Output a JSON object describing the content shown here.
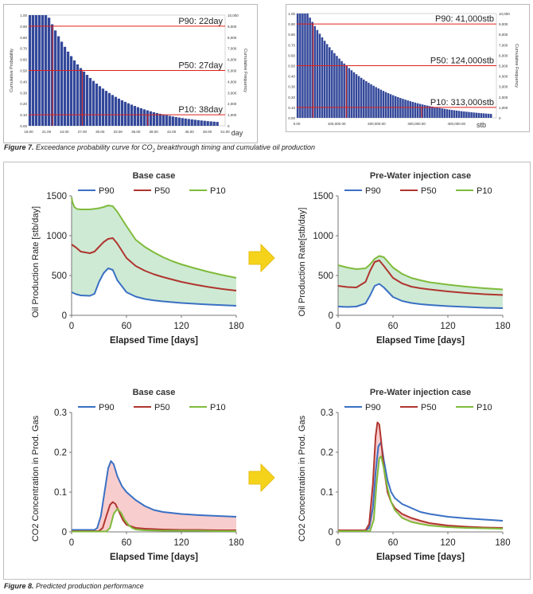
{
  "figure7": {
    "caption_prefix": "Figure 7.",
    "caption_text_a": " Exceedance probability curve for CO",
    "caption_sub": "2",
    "caption_text_b": " breakthrough timing and cumulative oil production"
  },
  "figure8": {
    "caption_prefix": "Figure 8.",
    "caption_text": " Predicted production performance"
  },
  "arrow_color": "#f5d31b",
  "chart_data": [
    {
      "id": "exc-breakthrough",
      "type": "bar",
      "xlabel": "day",
      "ylabel": "Cumulative Probability",
      "y2label": "Cumulative Frequency",
      "xlim": [
        18,
        51
      ],
      "ylim": [
        0,
        1
      ],
      "y2lim": [
        0,
        10000
      ],
      "xticks": [
        "18.00",
        "21.00",
        "24.00",
        "27.00",
        "30.00",
        "33.00",
        "36.00",
        "39.00",
        "42.00",
        "45.00",
        "48.00",
        "51.00"
      ],
      "yticks": [
        "0.00",
        "0.10",
        "0.20",
        "0.30",
        "0.40",
        "0.50",
        "0.60",
        "0.70",
        "0.80",
        "0.90",
        "1.00"
      ],
      "y2ticks": [
        "0",
        "1,000",
        "2,000",
        "3,000",
        "4,000",
        "5,000",
        "6,000",
        "7,000",
        "8,000",
        "9,000",
        "10,000"
      ],
      "bars": {
        "start": 18,
        "end": 50,
        "count": 60,
        "shape": "exceedance",
        "tau": 8.5,
        "shift": 3.0
      },
      "markers": [
        {
          "label": "P90: 22day",
          "prob": 0.9,
          "value": 22
        },
        {
          "label": "P50: 27day",
          "prob": 0.5,
          "value": 27
        },
        {
          "label": "P10: 38day",
          "prob": 0.1,
          "value": 38
        }
      ],
      "bar_color": "#33489a",
      "line_color": "#e0201b"
    },
    {
      "id": "exc-oil",
      "type": "bar",
      "xlabel": "stb",
      "ylabel": "Cumulative Probability",
      "y2label": "Cumulative Frequency",
      "xlim": [
        0,
        500000
      ],
      "ylim": [
        0,
        1
      ],
      "y2lim": [
        0,
        10000
      ],
      "xticks": [
        "0.00",
        "100,000.00",
        "200,000.00",
        "300,000.00",
        "400,000.00"
      ],
      "yticks": [
        "0.00",
        "0.10",
        "0.20",
        "0.30",
        "0.40",
        "0.50",
        "0.60",
        "0.70",
        "0.80",
        "0.90",
        "1.00"
      ],
      "y2ticks": [
        "0",
        "1,000",
        "2,000",
        "3,000",
        "4,000",
        "5,000",
        "6,000",
        "7,000",
        "8,000",
        "9,000",
        "10,000"
      ],
      "bars": {
        "start": 0,
        "end": 490000,
        "count": 80,
        "shape": "exceedance",
        "tau": 140000,
        "shift": 25000
      },
      "markers": [
        {
          "label": "P90: 41,000stb",
          "prob": 0.9,
          "value": 41000
        },
        {
          "label": "P50: 124,000stb",
          "prob": 0.5,
          "value": 124000
        },
        {
          "label": "P10: 313,000stb",
          "prob": 0.1,
          "value": 313000
        }
      ],
      "bar_color": "#33489a",
      "line_color": "#e0201b"
    },
    {
      "id": "oil-base",
      "type": "area",
      "title": "Base case",
      "xlabel": "Elapsed Time [days]",
      "ylabel": "Oil Production Rate [stb/day]",
      "xlim": [
        0,
        180
      ],
      "ylim": [
        0,
        1500
      ],
      "xticks": [
        0,
        60,
        120,
        180
      ],
      "yticks": [
        0,
        500,
        1000,
        1500
      ],
      "fill_between": [
        "P90",
        "P10"
      ],
      "fill_color": "#c9e8cf",
      "series": [
        {
          "name": "P90",
          "color": "#3a70c4",
          "x": [
            0,
            5,
            10,
            20,
            25,
            30,
            35,
            40,
            45,
            50,
            60,
            70,
            80,
            90,
            100,
            110,
            120,
            135,
            150,
            165,
            180
          ],
          "y": [
            290,
            265,
            250,
            245,
            270,
            420,
            530,
            590,
            570,
            440,
            290,
            235,
            205,
            188,
            175,
            165,
            155,
            145,
            135,
            128,
            120
          ]
        },
        {
          "name": "P50",
          "color": "#b0352f",
          "x": [
            0,
            5,
            10,
            20,
            25,
            30,
            35,
            40,
            45,
            50,
            60,
            70,
            80,
            90,
            100,
            110,
            120,
            135,
            150,
            165,
            180
          ],
          "y": [
            890,
            850,
            800,
            780,
            800,
            860,
            920,
            960,
            970,
            900,
            720,
            620,
            560,
            515,
            480,
            450,
            420,
            385,
            355,
            330,
            310
          ]
        },
        {
          "name": "P10",
          "color": "#7fbb3b",
          "x": [
            0,
            1,
            3,
            6,
            10,
            20,
            30,
            35,
            40,
            45,
            50,
            60,
            70,
            80,
            90,
            100,
            110,
            120,
            135,
            150,
            165,
            180
          ],
          "y": [
            1480,
            1420,
            1360,
            1335,
            1330,
            1330,
            1345,
            1360,
            1380,
            1370,
            1300,
            1120,
            950,
            860,
            790,
            730,
            680,
            640,
            590,
            545,
            505,
            470
          ]
        }
      ]
    },
    {
      "id": "oil-prewater",
      "type": "area",
      "title": "Pre-Water injection case",
      "xlabel": "Elapsed Time [days]",
      "ylabel": "Oil Production Rate[stb/day]",
      "xlim": [
        0,
        180
      ],
      "ylim": [
        0,
        1500
      ],
      "xticks": [
        0,
        60,
        120,
        180
      ],
      "yticks": [
        0,
        500,
        1000,
        1500
      ],
      "fill_between": [
        "P90",
        "P10"
      ],
      "fill_color": "#c9e8cf",
      "series": [
        {
          "name": "P90",
          "color": "#3a70c4",
          "x": [
            0,
            10,
            20,
            30,
            35,
            40,
            45,
            50,
            60,
            70,
            80,
            90,
            100,
            120,
            140,
            160,
            180
          ],
          "y": [
            110,
            105,
            110,
            150,
            250,
            370,
            395,
            350,
            230,
            180,
            155,
            140,
            130,
            115,
            105,
            95,
            90
          ]
        },
        {
          "name": "P50",
          "color": "#b0352f",
          "x": [
            0,
            10,
            20,
            30,
            35,
            40,
            45,
            50,
            60,
            70,
            80,
            90,
            100,
            120,
            140,
            160,
            180
          ],
          "y": [
            370,
            355,
            350,
            420,
            560,
            670,
            690,
            620,
            470,
            400,
            360,
            340,
            325,
            300,
            280,
            265,
            255
          ]
        },
        {
          "name": "P10",
          "color": "#7fbb3b",
          "x": [
            0,
            10,
            20,
            30,
            35,
            40,
            45,
            50,
            60,
            70,
            80,
            90,
            100,
            120,
            140,
            160,
            180
          ],
          "y": [
            630,
            600,
            580,
            590,
            640,
            710,
            745,
            730,
            600,
            520,
            470,
            440,
            415,
            385,
            360,
            340,
            325
          ]
        }
      ]
    },
    {
      "id": "co2-base",
      "type": "area",
      "title": "Base case",
      "xlabel": "Elapsed Time [days]",
      "ylabel": "CO2 Concentration in Prod. Gas",
      "xlim": [
        0,
        180
      ],
      "ylim": [
        0,
        0.3
      ],
      "xticks": [
        0,
        60,
        120,
        180
      ],
      "yticks": [
        0,
        0.1,
        0.2,
        0.3
      ],
      "fill_between": [
        "P90",
        "P10"
      ],
      "fill_color": "#f7c8c8",
      "series": [
        {
          "name": "P90",
          "color": "#3a70c4",
          "x": [
            0,
            25,
            28,
            32,
            36,
            40,
            43,
            46,
            50,
            55,
            60,
            70,
            80,
            90,
            100,
            120,
            140,
            160,
            180
          ],
          "y": [
            0.005,
            0.005,
            0.01,
            0.04,
            0.1,
            0.16,
            0.178,
            0.17,
            0.14,
            0.115,
            0.1,
            0.08,
            0.065,
            0.055,
            0.05,
            0.045,
            0.042,
            0.04,
            0.038
          ]
        },
        {
          "name": "P50",
          "color": "#b0352f",
          "x": [
            0,
            30,
            34,
            38,
            42,
            45,
            48,
            52,
            56,
            60,
            70,
            80,
            100,
            120,
            140,
            160,
            180
          ],
          "y": [
            0.002,
            0.002,
            0.01,
            0.04,
            0.068,
            0.075,
            0.07,
            0.05,
            0.03,
            0.018,
            0.01,
            0.008,
            0.006,
            0.005,
            0.005,
            0.004,
            0.004
          ]
        },
        {
          "name": "P10",
          "color": "#7fbb3b",
          "x": [
            0,
            38,
            42,
            46,
            50,
            54,
            58,
            62,
            66,
            70,
            80,
            100,
            120,
            140,
            160,
            180
          ],
          "y": [
            0.001,
            0.001,
            0.01,
            0.045,
            0.058,
            0.048,
            0.03,
            0.018,
            0.01,
            0.006,
            0.004,
            0.003,
            0.003,
            0.003,
            0.002,
            0.002
          ]
        }
      ]
    },
    {
      "id": "co2-prewater",
      "type": "area",
      "title": "Pre-Water injection case",
      "xlabel": "Elapsed Time [days]",
      "ylabel": "CO2 Concentration in Prod. Gas",
      "xlim": [
        0,
        180
      ],
      "ylim": [
        0,
        0.3
      ],
      "xticks": [
        0,
        60,
        120,
        180
      ],
      "yticks": [
        0,
        0.1,
        0.2,
        0.3
      ],
      "fill_between": [
        "P50",
        "P10"
      ],
      "fill_color": "#f7c8c8",
      "series": [
        {
          "name": "P90",
          "color": "#3a70c4",
          "x": [
            0,
            30,
            34,
            38,
            41,
            44,
            47,
            50,
            54,
            58,
            62,
            70,
            80,
            90,
            100,
            120,
            140,
            160,
            180
          ],
          "y": [
            0.004,
            0.004,
            0.01,
            0.06,
            0.15,
            0.215,
            0.225,
            0.18,
            0.13,
            0.1,
            0.085,
            0.07,
            0.06,
            0.05,
            0.045,
            0.038,
            0.034,
            0.031,
            0.028
          ]
        },
        {
          "name": "P50",
          "color": "#b0352f",
          "x": [
            0,
            30,
            34,
            38,
            41,
            43,
            45,
            47,
            50,
            54,
            58,
            62,
            70,
            80,
            90,
            100,
            120,
            140,
            160,
            180
          ],
          "y": [
            0.004,
            0.004,
            0.02,
            0.12,
            0.24,
            0.275,
            0.27,
            0.23,
            0.16,
            0.1,
            0.075,
            0.06,
            0.045,
            0.035,
            0.028,
            0.022,
            0.016,
            0.013,
            0.011,
            0.01
          ]
        },
        {
          "name": "P10",
          "color": "#7fbb3b",
          "x": [
            0,
            35,
            39,
            42,
            45,
            47,
            50,
            54,
            58,
            62,
            70,
            80,
            90,
            100,
            120,
            140,
            160,
            180
          ],
          "y": [
            0.002,
            0.002,
            0.03,
            0.12,
            0.185,
            0.19,
            0.16,
            0.11,
            0.075,
            0.055,
            0.035,
            0.025,
            0.02,
            0.016,
            0.012,
            0.01,
            0.009,
            0.008
          ]
        }
      ]
    }
  ]
}
